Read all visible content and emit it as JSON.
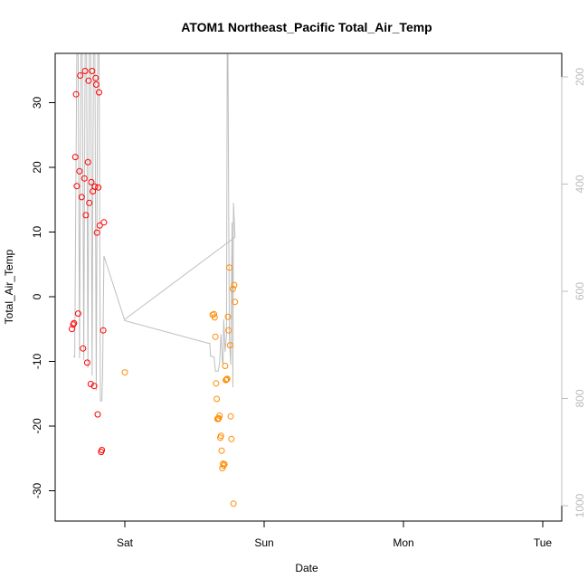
{
  "chart_data": {
    "type": "scatter",
    "title": "ATOM1 Northeast_Pacific Total_Air_Temp",
    "xlabel": "Date",
    "ylabel": "Total_Air_Temp",
    "x_ticks": [
      "Sat",
      "Sun",
      "Mon",
      "Tue"
    ],
    "xlim": [
      -0.44,
      3.06
    ],
    "ylim": [
      -34.5,
      37.5
    ],
    "y_ticks": [
      -30,
      -20,
      -10,
      0,
      10,
      20,
      30
    ],
    "y2_ticks": [
      200,
      400,
      600,
      800,
      1000
    ],
    "y2lim": [
      140,
      1030
    ],
    "y2_reversed": true,
    "grid": false,
    "colors": {
      "series1": "#ff0000",
      "series2": "#ff8c00",
      "line": "#bebebe",
      "right_axis": "#bebebe"
    },
    "series": [
      {
        "color": "#ff0000",
        "points": [
          [
            -0.38,
            -5.0
          ],
          [
            -0.37,
            -4.3
          ],
          [
            -0.365,
            -4.1
          ],
          [
            -0.355,
            21.6
          ],
          [
            -0.35,
            31.3
          ],
          [
            -0.345,
            17.1
          ],
          [
            -0.335,
            -2.6
          ],
          [
            -0.325,
            19.4
          ],
          [
            -0.32,
            34.2
          ],
          [
            -0.31,
            15.4
          ],
          [
            -0.3,
            -8.0
          ],
          [
            -0.29,
            18.3
          ],
          [
            -0.285,
            34.9
          ],
          [
            -0.28,
            12.6
          ],
          [
            -0.27,
            -10.2
          ],
          [
            -0.265,
            20.8
          ],
          [
            -0.26,
            33.4
          ],
          [
            -0.255,
            14.5
          ],
          [
            -0.245,
            -13.5
          ],
          [
            -0.24,
            17.7
          ],
          [
            -0.235,
            34.9
          ],
          [
            -0.23,
            16.3
          ],
          [
            -0.22,
            -13.8
          ],
          [
            -0.215,
            17.0
          ],
          [
            -0.21,
            33.8
          ],
          [
            -0.205,
            32.8
          ],
          [
            -0.2,
            9.9
          ],
          [
            -0.195,
            -18.2
          ],
          [
            -0.19,
            16.9
          ],
          [
            -0.185,
            31.6
          ],
          [
            -0.18,
            11.0
          ],
          [
            -0.17,
            -24.0
          ],
          [
            -0.165,
            -23.7
          ],
          [
            -0.155,
            -5.2
          ],
          [
            -0.15,
            11.5
          ]
        ]
      },
      {
        "color": "#ff8c00",
        "points": [
          [
            0.0,
            -11.7
          ],
          [
            0.63,
            -2.8
          ],
          [
            0.64,
            -2.7
          ],
          [
            0.645,
            -3.2
          ],
          [
            0.65,
            -6.2
          ],
          [
            0.655,
            -13.4
          ],
          [
            0.66,
            -15.8
          ],
          [
            0.665,
            -18.9
          ],
          [
            0.67,
            -18.9
          ],
          [
            0.675,
            -18.8
          ],
          [
            0.68,
            -18.4
          ],
          [
            0.685,
            -21.8
          ],
          [
            0.69,
            -21.5
          ],
          [
            0.695,
            -23.8
          ],
          [
            0.7,
            -26.5
          ],
          [
            0.705,
            -25.8
          ],
          [
            0.71,
            -26.1
          ],
          [
            0.715,
            -25.9
          ],
          [
            0.72,
            -10.7
          ],
          [
            0.725,
            -12.9
          ],
          [
            0.73,
            -12.8
          ],
          [
            0.735,
            -12.7
          ],
          [
            0.74,
            -3.1
          ],
          [
            0.745,
            -5.2
          ],
          [
            0.75,
            4.5
          ],
          [
            0.755,
            -7.5
          ],
          [
            0.76,
            -18.5
          ],
          [
            0.765,
            -22.0
          ],
          [
            0.775,
            1.2
          ],
          [
            0.78,
            -32.0
          ],
          [
            0.785,
            1.8
          ],
          [
            0.79,
            -0.8
          ]
        ]
      }
    ],
    "line_series": {
      "color": "#bebebe",
      "points": [
        [
          -0.37,
          -9.3
        ],
        [
          -0.36,
          -9.3
        ],
        [
          -0.345,
          37.5
        ],
        [
          -0.335,
          37.5
        ],
        [
          -0.325,
          -9.5
        ],
        [
          -0.315,
          37.5
        ],
        [
          -0.305,
          37.5
        ],
        [
          -0.295,
          -9.8
        ],
        [
          -0.285,
          37.5
        ],
        [
          -0.275,
          37.5
        ],
        [
          -0.265,
          -11.0
        ],
        [
          -0.255,
          37.5
        ],
        [
          -0.245,
          37.5
        ],
        [
          -0.235,
          -12.2
        ],
        [
          -0.225,
          37.5
        ],
        [
          -0.215,
          37.5
        ],
        [
          -0.205,
          -14.5
        ],
        [
          -0.195,
          37.5
        ],
        [
          -0.185,
          37.5
        ],
        [
          -0.175,
          -16.1
        ],
        [
          -0.165,
          -16.1
        ],
        [
          -0.16,
          -12.0
        ],
        [
          -0.15,
          6.3
        ],
        [
          0.0,
          -3.7
        ],
        [
          0.6,
          -7.2
        ],
        [
          0.61,
          -7.2
        ],
        [
          0.615,
          -9.2
        ],
        [
          0.64,
          -9.3
        ],
        [
          0.65,
          -11.5
        ],
        [
          0.67,
          -11.5
        ],
        [
          0.68,
          -10.3
        ],
        [
          0.69,
          -5.8
        ],
        [
          0.7,
          -10.0
        ],
        [
          0.705,
          -10.5
        ],
        [
          0.71,
          -3.5
        ],
        [
          0.72,
          -8.5
        ],
        [
          0.73,
          -6.0
        ],
        [
          0.735,
          37.5
        ],
        [
          0.74,
          37.5
        ],
        [
          0.75,
          -6.0
        ],
        [
          0.76,
          -10.5
        ],
        [
          0.77,
          11.5
        ],
        [
          0.775,
          -14.0
        ],
        [
          0.78,
          14.5
        ],
        [
          0.79,
          9.5
        ],
        [
          0.79,
          9.2
        ],
        [
          0.0,
          -3.5
        ]
      ]
    }
  }
}
